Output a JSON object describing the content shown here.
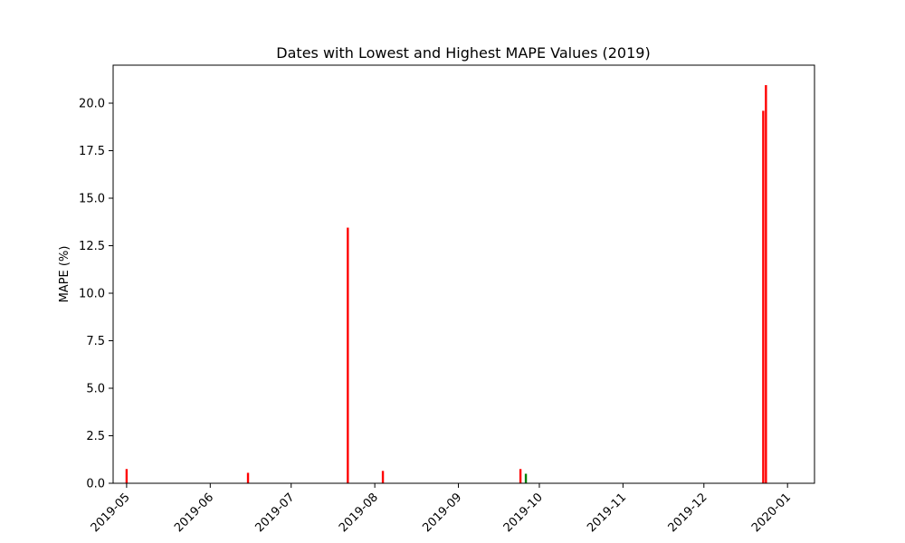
{
  "chart_data": {
    "type": "bar",
    "title": "Dates with Lowest and Highest MAPE Values (2019)",
    "xlabel": "",
    "ylabel": "MAPE (%)",
    "xlim": [
      "2019-04-26",
      "2020-01-11"
    ],
    "ylim": [
      0,
      22.0
    ],
    "grid": false,
    "colors": {
      "highest": "#ff0000",
      "lowest": "#008000"
    },
    "x_ticks": [
      "2019-05",
      "2019-06",
      "2019-07",
      "2019-08",
      "2019-09",
      "2019-10",
      "2019-11",
      "2019-12",
      "2020-01"
    ],
    "y_ticks": [
      "0.0",
      "2.5",
      "5.0",
      "7.5",
      "10.0",
      "12.5",
      "15.0",
      "17.5",
      "20.0"
    ],
    "bars": [
      {
        "date": "2019-05-01",
        "value": 0.75,
        "color": "#ff0000"
      },
      {
        "date": "2019-06-15",
        "value": 0.55,
        "color": "#ff0000"
      },
      {
        "date": "2019-07-22",
        "value": 13.45,
        "color": "#ff0000"
      },
      {
        "date": "2019-08-04",
        "value": 0.65,
        "color": "#ff0000"
      },
      {
        "date": "2019-09-24",
        "value": 0.75,
        "color": "#ff0000"
      },
      {
        "date": "2019-09-26",
        "value": 0.5,
        "color": "#008000"
      },
      {
        "date": "2019-12-23",
        "value": 19.6,
        "color": "#ff0000"
      },
      {
        "date": "2019-12-24",
        "value": 20.95,
        "color": "#ff0000"
      }
    ]
  }
}
